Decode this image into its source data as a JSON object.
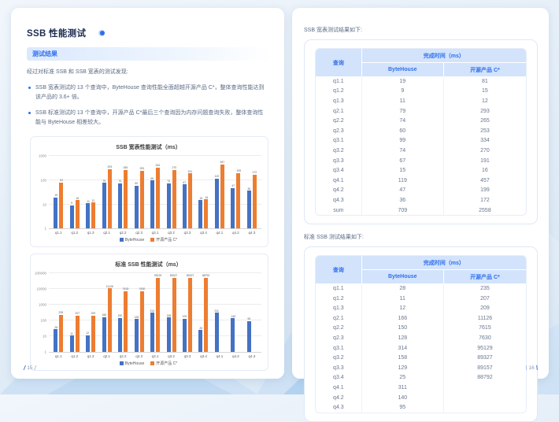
{
  "page": {
    "title": "SSB 性能测试",
    "section_header": "测试结果",
    "intro": "经过对标准 SSB 和 SSB 宽表的测试发现:",
    "bullets": [
      "SSB 宽表测试的 13 个查询中，ByteHouse 查询性能全面超越开源产品 C*，整体查询性能达到该产品的 3.6+ 倍。",
      "SSB 标准测试的 13 个查询中，开源产品 C*最后三个查询因为内存问题查询失败，整体查询性能与 ByteHouse 相差较大。"
    ],
    "left_page_number": "15",
    "right_page_number": "16"
  },
  "colors": {
    "bytehouse_bar": "#4472C4",
    "opensource_bar": "#ED7D31",
    "accent_blue": "#2F6FED",
    "title_navy": "#1C2B50",
    "table_header_bg": "#D2E3FB"
  },
  "chart_data": [
    {
      "type": "bar",
      "title": "SSB 宽表性能测试（ms）",
      "categories": [
        "q1.1",
        "q1.2",
        "q1.3",
        "q2.1",
        "q2.2",
        "q2.3",
        "q3.1",
        "q3.2",
        "q3.3",
        "q3.4",
        "q4.1",
        "q4.2",
        "q4.3"
      ],
      "series": [
        {
          "name": "ByteHouse",
          "color": "#4472C4",
          "values": [
            19,
            9,
            11,
            79,
            74,
            60,
            99,
            74,
            67,
            15,
            119,
            47,
            36
          ]
        },
        {
          "name": "开源产品 C*",
          "color": "#ED7D31",
          "values": [
            81,
            15,
            12,
            293,
            265,
            253,
            334,
            270,
            191,
            16,
            457,
            199,
            172
          ]
        }
      ],
      "y_scale": "log",
      "y_ticks": [
        1,
        10,
        100,
        1000
      ],
      "ylabel": "",
      "xlabel": "",
      "legend_position": "bottom",
      "grid": true
    },
    {
      "type": "bar",
      "title": "标准 SSB 性能测试（ms）",
      "categories": [
        "q1.1",
        "q1.2",
        "q1.3",
        "q2.1",
        "q2.2",
        "q2.3",
        "q3.1",
        "q3.2",
        "q3.3",
        "q3.4",
        "q4.1",
        "q4.2",
        "q4.3"
      ],
      "series": [
        {
          "name": "ByteHouse",
          "color": "#4472C4",
          "values": [
            28,
            11,
            12,
            166,
            150,
            128,
            314,
            158,
            129,
            25,
            311,
            140,
            95
          ]
        },
        {
          "name": "开源产品 C*",
          "color": "#ED7D31",
          "values": [
            235,
            207,
            209,
            11126,
            7615,
            7630,
            95129,
            89327,
            89157,
            88792,
            null,
            null,
            null
          ]
        }
      ],
      "y_scale": "log",
      "y_ticks": [
        1,
        10,
        100,
        1000,
        10000,
        100000
      ],
      "ylabel": "",
      "xlabel": "",
      "legend_position": "bottom",
      "grid": true
    }
  ],
  "tables": [
    {
      "caption": "SSB 宽表测试结果如下:",
      "col1_header": "查询",
      "group_header": "完成时间（ms）",
      "sub_headers": [
        "ByteHouse",
        "开源产品 C*"
      ],
      "rows": [
        [
          "q1.1",
          "19",
          "81"
        ],
        [
          "q1.2",
          "9",
          "15"
        ],
        [
          "q1.3",
          "11",
          "12"
        ],
        [
          "q2.1",
          "79",
          "293"
        ],
        [
          "q2.2",
          "74",
          "265"
        ],
        [
          "q2.3",
          "60",
          "253"
        ],
        [
          "q3.1",
          "99",
          "334"
        ],
        [
          "q3.2",
          "74",
          "270"
        ],
        [
          "q3.3",
          "67",
          "191"
        ],
        [
          "q3.4",
          "15",
          "16"
        ],
        [
          "q4.1",
          "119",
          "457"
        ],
        [
          "q4.2",
          "47",
          "199"
        ],
        [
          "q4.3",
          "36",
          "172"
        ],
        [
          "sum",
          "709",
          "2558"
        ]
      ]
    },
    {
      "caption": "标准 SSB 测试结果如下:",
      "col1_header": "查询",
      "group_header": "完成时间（ms）",
      "sub_headers": [
        "ByteHouse",
        "开源产品 C*"
      ],
      "rows": [
        [
          "q1.1",
          "28",
          "235"
        ],
        [
          "q1.2",
          "11",
          "207"
        ],
        [
          "q1.3",
          "12",
          "209"
        ],
        [
          "q2.1",
          "166",
          "11126"
        ],
        [
          "q2.2",
          "150",
          "7615"
        ],
        [
          "q2.3",
          "128",
          "7630"
        ],
        [
          "q3.1",
          "314",
          "95129"
        ],
        [
          "q3.2",
          "158",
          "89327"
        ],
        [
          "q3.3",
          "129",
          "89157"
        ],
        [
          "q3.4",
          "25",
          "88792"
        ],
        [
          "q4.1",
          "311",
          ""
        ],
        [
          "q4.2",
          "140",
          ""
        ],
        [
          "q4.3",
          "95",
          ""
        ]
      ]
    }
  ]
}
